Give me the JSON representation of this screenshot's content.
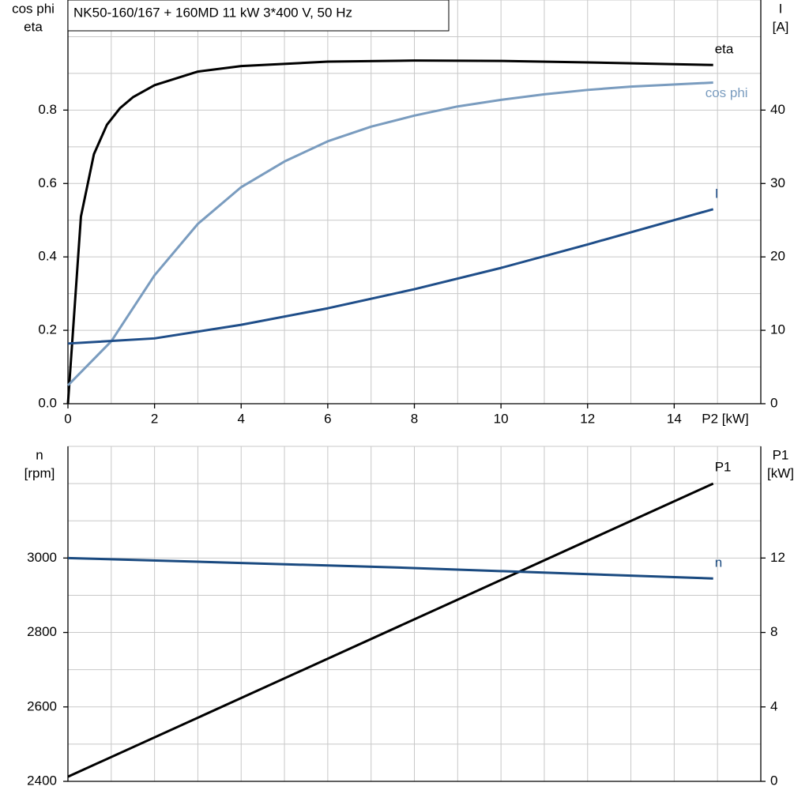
{
  "chart_data": [
    {
      "type": "line",
      "title": "NK50-160/167 + 160MD   11 kW   3*400 V, 50 Hz",
      "ylabel": [
        "cos phi",
        "eta"
      ],
      "y2label": [
        "I",
        "[A]"
      ],
      "xlabel": "P2 [kW]",
      "xlim": [
        0,
        16
      ],
      "xticks": [
        0,
        2,
        4,
        6,
        8,
        10,
        12,
        14
      ],
      "xgrid": [
        1,
        2,
        3,
        4,
        5,
        6,
        7,
        8,
        9,
        10,
        11,
        12,
        13,
        14,
        15
      ],
      "ylim": [
        0,
        1.1
      ],
      "yticks": [
        {
          "value": 0,
          "label": "0.0"
        },
        0.2,
        0.4,
        0.6,
        0.8
      ],
      "ygrid": [
        0.1,
        0.2,
        0.3,
        0.4,
        0.5,
        0.6,
        0.7,
        0.8,
        0.9,
        1.0
      ],
      "y2lim": [
        0,
        55
      ],
      "y2ticks": [
        0,
        10,
        20,
        30,
        40
      ],
      "series": [
        {
          "name": "eta",
          "color": "#000000",
          "x": [
            0,
            0.3,
            0.6,
            0.9,
            1.2,
            1.5,
            2,
            3,
            4,
            6,
            8,
            10,
            12,
            14.9
          ],
          "values": [
            0,
            0.51,
            0.68,
            0.76,
            0.805,
            0.835,
            0.868,
            0.905,
            0.92,
            0.932,
            0.935,
            0.934,
            0.93,
            0.923
          ]
        },
        {
          "name": "cos phi",
          "color": "#7a9cbf",
          "x": [
            0,
            1,
            2,
            3,
            4,
            5,
            6,
            7,
            8,
            9,
            10,
            11,
            12,
            13,
            14.9
          ],
          "values": [
            0.05,
            0.17,
            0.35,
            0.49,
            0.59,
            0.66,
            0.715,
            0.755,
            0.785,
            0.81,
            0.828,
            0.843,
            0.855,
            0.864,
            0.875
          ]
        },
        {
          "name": "I",
          "color": "#1f4e89",
          "axis": "y2",
          "x": [
            0,
            2,
            4,
            6,
            8,
            10,
            12,
            14.9
          ],
          "values": [
            8.2,
            8.9,
            10.75,
            13,
            15.6,
            18.5,
            21.7,
            26.5
          ]
        }
      ]
    },
    {
      "type": "line",
      "ylabel": [
        "n",
        "[rpm]"
      ],
      "y2label": [
        "P1",
        "[kW]"
      ],
      "xlim": [
        0,
        16
      ],
      "xgrid": [
        1,
        2,
        3,
        4,
        5,
        6,
        7,
        8,
        9,
        10,
        11,
        12,
        13,
        14,
        15
      ],
      "ylim": [
        2400,
        3300
      ],
      "yticks": [
        2400,
        2600,
        2800,
        3000
      ],
      "ygrid": [
        2500,
        2600,
        2700,
        2800,
        2900,
        3000,
        3100,
        3200
      ],
      "y2lim": [
        0,
        18
      ],
      "y2ticks": [
        0,
        4,
        8,
        12
      ],
      "series": [
        {
          "name": "P1",
          "color": "#000000",
          "axis": "y2",
          "x": [
            0,
            14.9
          ],
          "values": [
            0.25,
            16.0
          ]
        },
        {
          "name": "n",
          "color": "#1a4a80",
          "x": [
            0,
            7.5,
            14.9
          ],
          "values": [
            3000,
            2975,
            2945
          ]
        }
      ]
    }
  ]
}
